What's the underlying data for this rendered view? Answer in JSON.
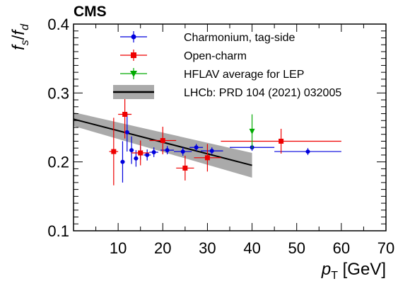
{
  "chart_data": {
    "type": "scatter",
    "experiment_label": "CMS",
    "xlabel": {
      "main": "p",
      "sub": "T",
      "unit": " [GeV]"
    },
    "ylabel": {
      "f1": "f",
      "s1": "s",
      "slash": "/",
      "f2": "f",
      "s2": "d"
    },
    "xlim": [
      0,
      70
    ],
    "ylim": [
      0.1,
      0.4
    ],
    "xticks": [
      10,
      20,
      30,
      40,
      50,
      60,
      70
    ],
    "yticks": [
      0.1,
      0.2,
      0.3,
      0.4
    ],
    "grid": false,
    "legend_position": "top-right",
    "series": [
      {
        "name": "Charmonium, tag-side",
        "color": "#0000dd",
        "marker": "circle",
        "points": [
          {
            "x": 11.0,
            "y": 0.2,
            "xerr": 0.5,
            "yerr": 0.03
          },
          {
            "x": 12.0,
            "y": 0.243,
            "xerr": 0.5,
            "yerr": 0.028
          },
          {
            "x": 13.0,
            "y": 0.217,
            "xerr": 0.5,
            "yerr": 0.02
          },
          {
            "x": 14.0,
            "y": 0.205,
            "xerr": 0.5,
            "yerr": 0.012
          },
          {
            "x": 15.0,
            "y": 0.213,
            "xerr": 0.5,
            "yerr": 0.01
          },
          {
            "x": 16.5,
            "y": 0.21,
            "xerr": 0.8,
            "yerr": 0.008
          },
          {
            "x": 18.0,
            "y": 0.214,
            "xerr": 1.0,
            "yerr": 0.007
          },
          {
            "x": 21.0,
            "y": 0.217,
            "xerr": 1.5,
            "yerr": 0.006
          },
          {
            "x": 24.5,
            "y": 0.215,
            "xerr": 2.0,
            "yerr": 0.006
          },
          {
            "x": 27.5,
            "y": 0.221,
            "xerr": 1.5,
            "yerr": 0.005
          },
          {
            "x": 31.0,
            "y": 0.216,
            "xerr": 2.5,
            "yerr": 0.005
          },
          {
            "x": 40.0,
            "y": 0.221,
            "xerr": 5.0,
            "yerr": 0.005
          },
          {
            "x": 52.5,
            "y": 0.215,
            "xerr": 7.5,
            "yerr": 0.005
          }
        ]
      },
      {
        "name": "Open-charm",
        "color": "#ee0000",
        "marker": "square",
        "points": [
          {
            "x": 9.0,
            "y": 0.215,
            "xerr": 1.0,
            "yerr": 0.049
          },
          {
            "x": 11.5,
            "y": 0.269,
            "xerr": 1.5,
            "yerr": 0.035
          },
          {
            "x": 15.0,
            "y": 0.213,
            "xerr": 2.0,
            "yerr": 0.018
          },
          {
            "x": 20.0,
            "y": 0.231,
            "xerr": 3.0,
            "yerr": 0.02
          },
          {
            "x": 25.0,
            "y": 0.191,
            "xerr": 2.0,
            "yerr": 0.018
          },
          {
            "x": 30.0,
            "y": 0.206,
            "xerr": 3.0,
            "yerr": 0.02
          },
          {
            "x": 46.5,
            "y": 0.23,
            "xerr": 13.5,
            "yerr": 0.018
          }
        ]
      },
      {
        "name": "HFLAV average for LEP",
        "color": "#00aa00",
        "marker": "triangle-down",
        "points": [
          {
            "x": 40.0,
            "y": 0.244,
            "xerr": 0,
            "yerr": 0.025
          }
        ]
      },
      {
        "name": "LHCb: PRD 104 (2021) 032005",
        "color": "#000000",
        "band_color": "#aaaaaa",
        "type": "line_band",
        "x": [
          0,
          40
        ],
        "y": [
          0.262,
          0.195
        ],
        "band_halfwidth": [
          0.01,
          0.018
        ]
      }
    ]
  }
}
